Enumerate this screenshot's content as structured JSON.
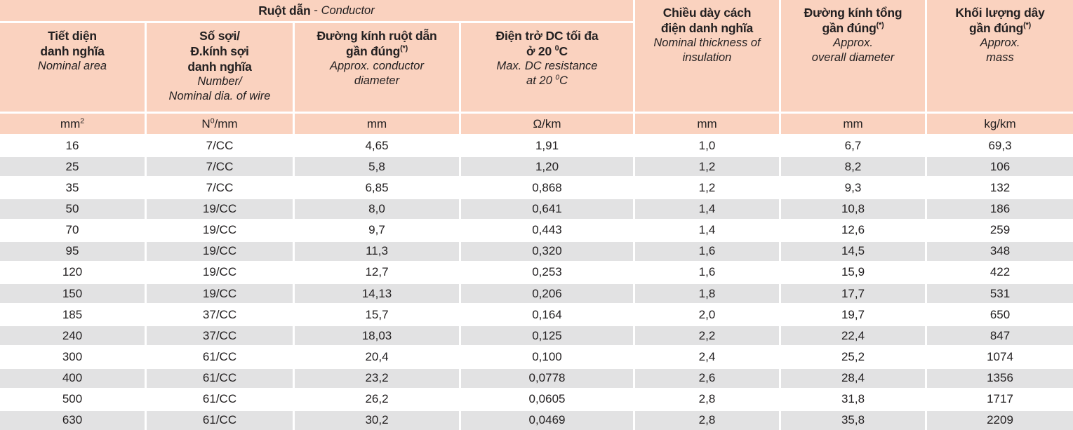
{
  "colors": {
    "header_bg": "#fad2bf",
    "row_alt_bg": "#e2e2e3",
    "row_bg": "#ffffff",
    "text": "#232021"
  },
  "table": {
    "group_header": {
      "vi_bold": "Ruột dẫn",
      "separator": " - ",
      "en_italic": "Conductor"
    },
    "columns": [
      {
        "id": "nominal-area",
        "vi_lines": [
          "Tiết diện",
          "danh nghĩa"
        ],
        "en_lines": [
          "Nominal area"
        ],
        "unit": "mm^{2}"
      },
      {
        "id": "wire-number-dia",
        "vi_lines": [
          "Số sợi/",
          "Đ.kính sợi",
          "danh nghĩa"
        ],
        "en_lines": [
          "Number/",
          "Nominal dia. of wire"
        ],
        "unit": "N^{0}/mm"
      },
      {
        "id": "conductor-diameter",
        "vi_lines": [
          "Đường kính ruột dẫn",
          "gần đúng^{(*)}"
        ],
        "en_lines": [
          "Approx. conductor",
          "diameter"
        ],
        "unit": "mm"
      },
      {
        "id": "dc-resistance",
        "vi_lines": [
          "Điện trở DC tối đa",
          "ở 20 ^{0}C"
        ],
        "en_lines": [
          "Max. DC resistance",
          "at 20 ^{0}C"
        ],
        "unit": "Ω/km"
      },
      {
        "id": "insulation-thickness",
        "vi_lines": [
          "Chiều dày cách",
          "điện danh nghĩa"
        ],
        "en_lines": [
          "Nominal thickness of",
          "insulation"
        ],
        "unit": "mm"
      },
      {
        "id": "overall-diameter",
        "vi_lines": [
          "Đường kính tổng",
          "gần đúng^{(*)}"
        ],
        "en_lines": [
          "Approx.",
          "overall diameter"
        ],
        "unit": "mm"
      },
      {
        "id": "mass",
        "vi_lines": [
          "Khối lượng dây",
          "gần đúng^{(*)}"
        ],
        "en_lines": [
          "Approx.",
          "mass"
        ],
        "unit": "kg/km"
      }
    ],
    "rows": [
      [
        "16",
        "7/CC",
        "4,65",
        "1,91",
        "1,0",
        "6,7",
        "69,3"
      ],
      [
        "25",
        "7/CC",
        "5,8",
        "1,20",
        "1,2",
        "8,2",
        "106"
      ],
      [
        "35",
        "7/CC",
        "6,85",
        "0,868",
        "1,2",
        "9,3",
        "132"
      ],
      [
        "50",
        "19/CC",
        "8,0",
        "0,641",
        "1,4",
        "10,8",
        "186"
      ],
      [
        "70",
        "19/CC",
        "9,7",
        "0,443",
        "1,4",
        "12,6",
        "259"
      ],
      [
        "95",
        "19/CC",
        "11,3",
        "0,320",
        "1,6",
        "14,5",
        "348"
      ],
      [
        "120",
        "19/CC",
        "12,7",
        "0,253",
        "1,6",
        "15,9",
        "422"
      ],
      [
        "150",
        "19/CC",
        "14,13",
        "0,206",
        "1,8",
        "17,7",
        "531"
      ],
      [
        "185",
        "37/CC",
        "15,7",
        "0,164",
        "2,0",
        "19,7",
        "650"
      ],
      [
        "240",
        "37/CC",
        "18,03",
        "0,125",
        "2,2",
        "22,4",
        "847"
      ],
      [
        "300",
        "61/CC",
        "20,4",
        "0,100",
        "2,4",
        "25,2",
        "1074"
      ],
      [
        "400",
        "61/CC",
        "23,2",
        "0,0778",
        "2,6",
        "28,4",
        "1356"
      ],
      [
        "500",
        "61/CC",
        "26,2",
        "0,0605",
        "2,8",
        "31,8",
        "1717"
      ],
      [
        "630",
        "61/CC",
        "30,2",
        "0,0469",
        "2,8",
        "35,8",
        "2209"
      ]
    ]
  }
}
